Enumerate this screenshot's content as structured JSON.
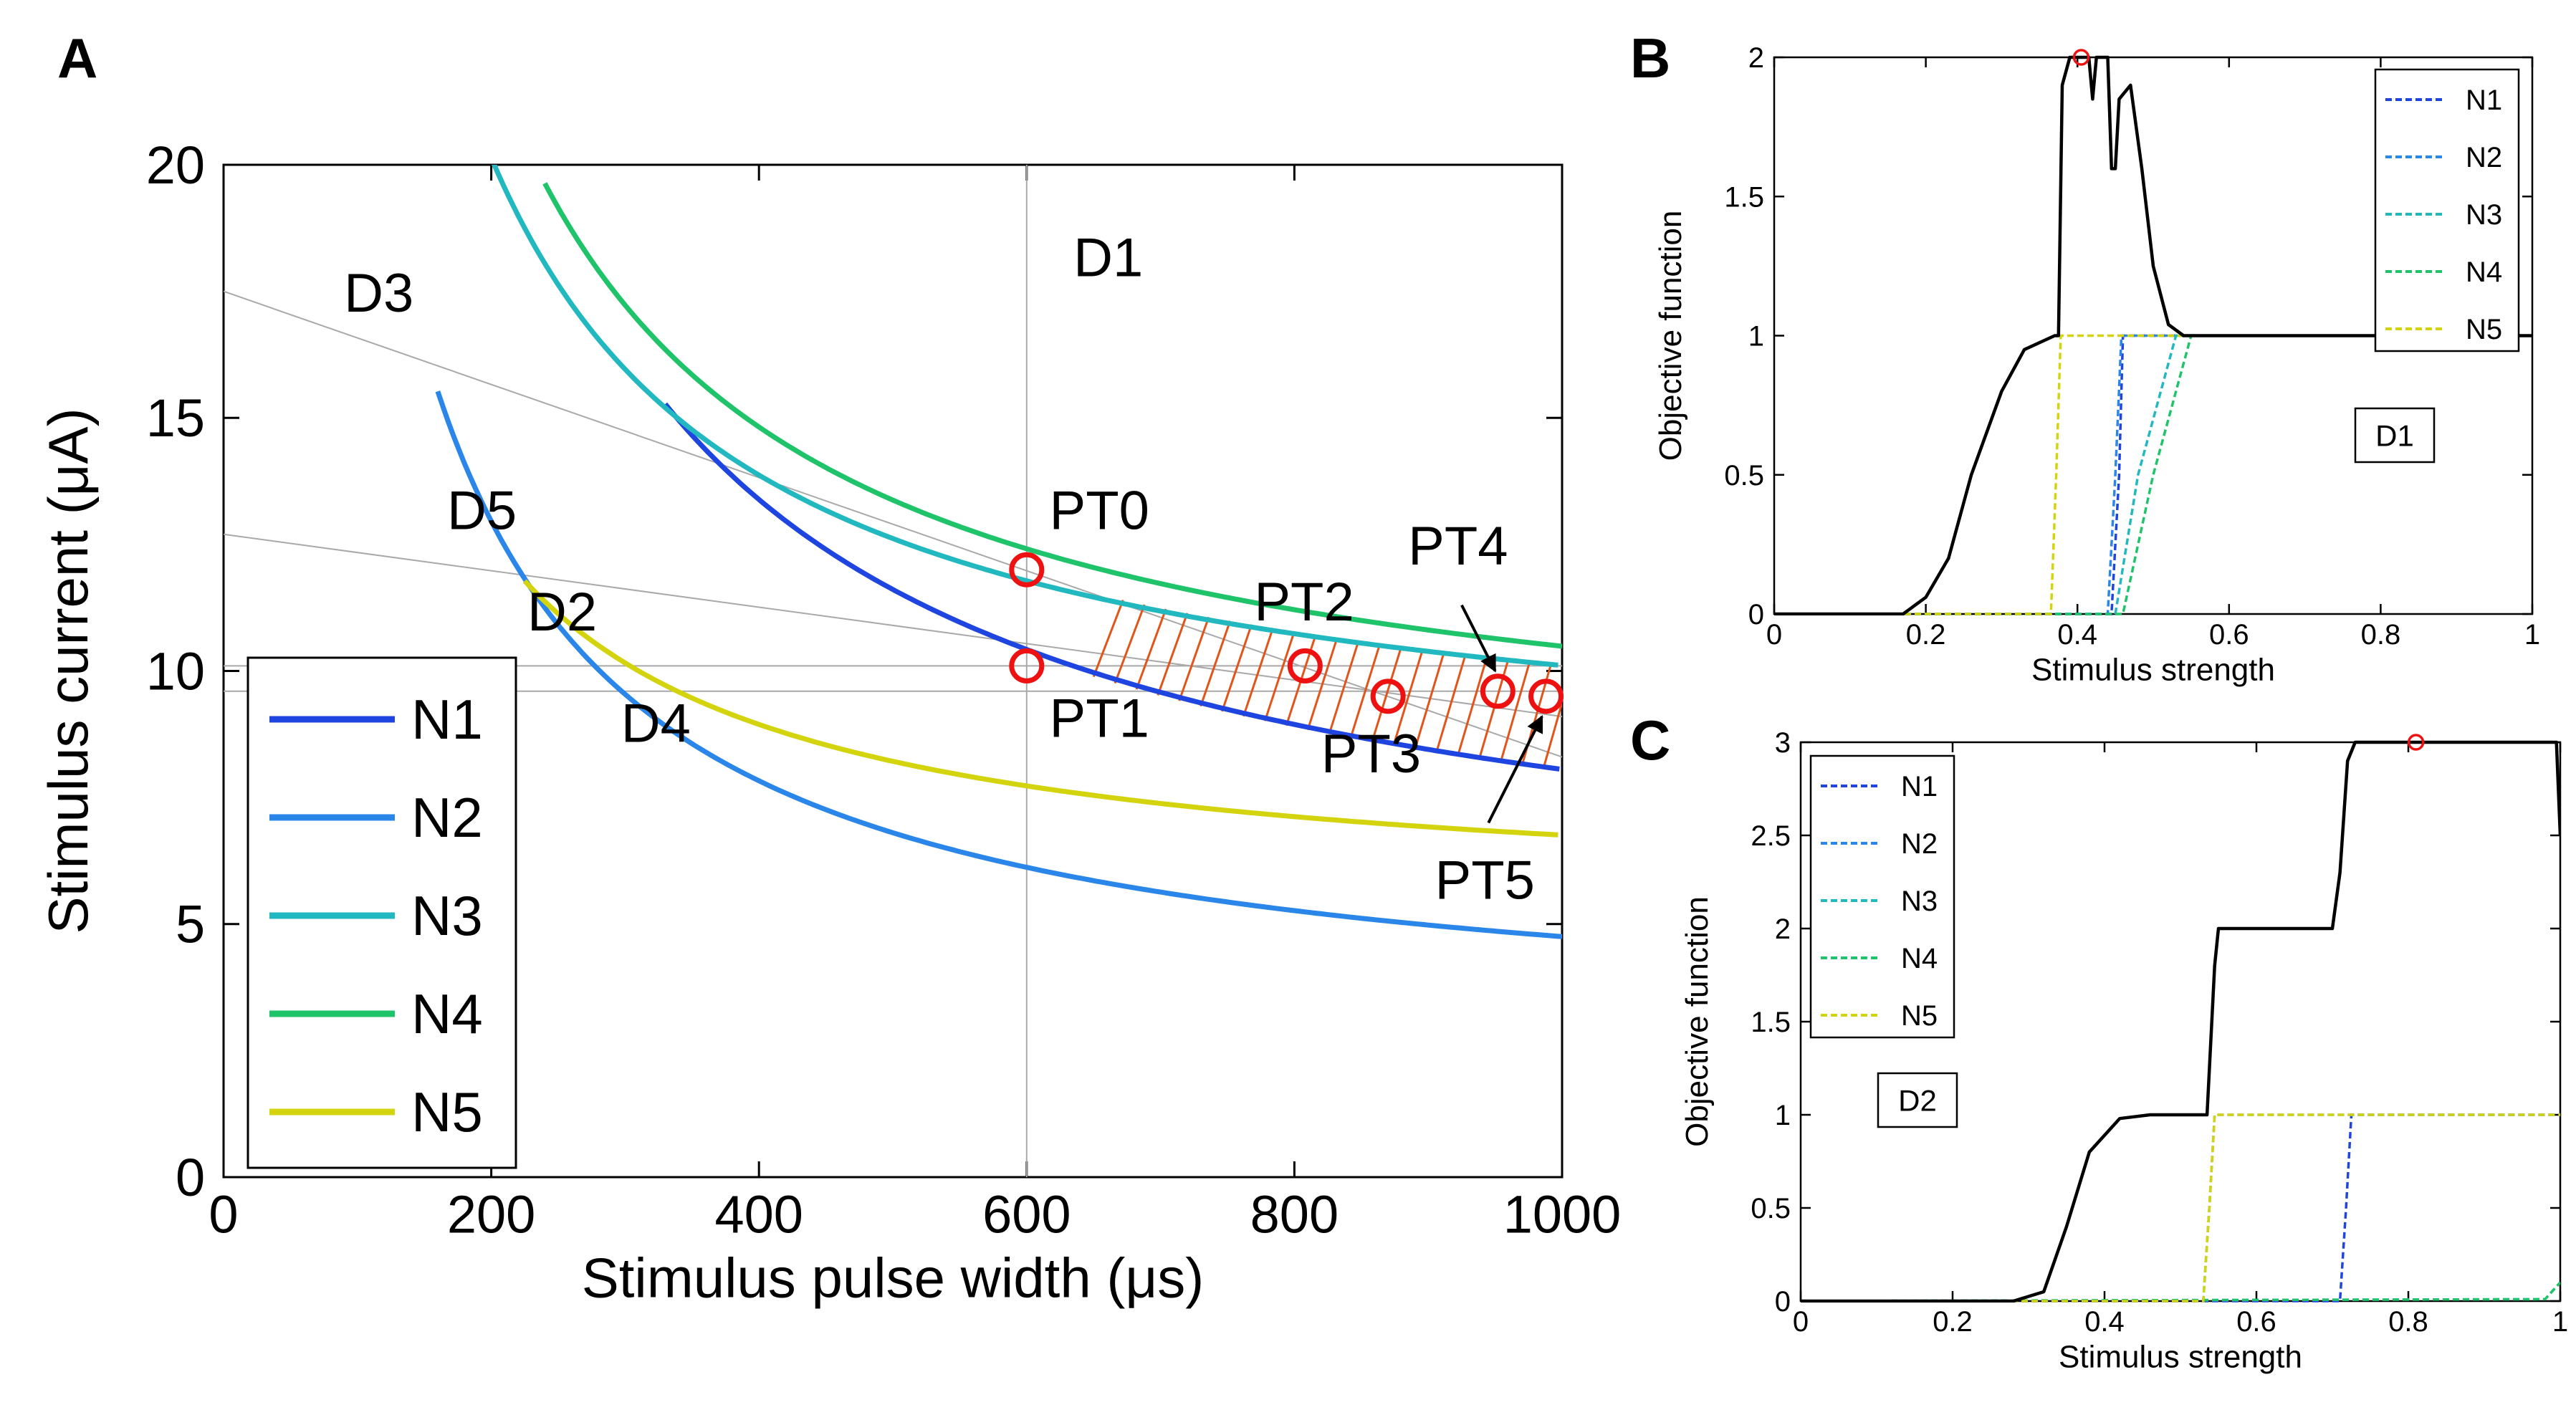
{
  "colors": {
    "N1": "#1f45e0",
    "N2": "#2a86e8",
    "N3": "#22b8c0",
    "N4": "#1fc46a",
    "N5": "#d4d40e",
    "black": "#000000",
    "marker": "#ee1111",
    "hatch": "#e2551a",
    "guide": "#a9a9a9"
  },
  "chart_data": [
    {
      "panel": "A",
      "type": "line",
      "title": "",
      "xlabel": "Stimulus pulse width (μs)",
      "ylabel": "Stimulus current (μA)",
      "xlim": [
        0,
        1000
      ],
      "ylim": [
        0,
        20
      ],
      "xticks": [
        "0",
        "200",
        "400",
        "600",
        "800",
        "1000"
      ],
      "yticks": [
        "0",
        "5",
        "10",
        "15",
        "20"
      ],
      "curve_model": "y = rheobase * (1 + chronaxie / x)",
      "series": [
        {
          "name": "N1",
          "rheobase": 4.5,
          "chronaxie": 790,
          "x_range": [
            330,
            1000
          ],
          "color_key": "N1"
        },
        {
          "name": "N2",
          "rheobase": 2.7,
          "chronaxie": 760,
          "x_range": [
            160,
            1000
          ],
          "color_key": "N2"
        },
        {
          "name": "N3",
          "rheobase": 7.6,
          "chronaxie": 330,
          "x_range": [
            165,
            1000
          ],
          "color_key": "N3"
        },
        {
          "name": "N4",
          "rheobase": 7.6,
          "chronaxie": 380,
          "x_range": [
            240,
            1000
          ],
          "color_key": "N4"
        },
        {
          "name": "N5",
          "rheobase": 5.3,
          "chronaxie": 275,
          "x_range": [
            225,
            1000
          ],
          "color_key": "N5"
        }
      ],
      "guide_lines": [
        {
          "from": [
            0,
            17.5
          ],
          "to": [
            1000,
            8.3
          ]
        },
        {
          "from": [
            0,
            12.7
          ],
          "to": [
            1000,
            9.1
          ]
        },
        {
          "from": [
            0,
            10.1
          ],
          "to": [
            1000,
            10.1
          ]
        },
        {
          "from": [
            0,
            9.6
          ],
          "to": [
            1000,
            9.6
          ]
        },
        {
          "from": [
            600,
            0
          ],
          "to": [
            600,
            20
          ]
        }
      ],
      "feasible_region_hatch": {
        "x_range": [
          660,
          1000
        ],
        "lower": "N1",
        "upper": "N3"
      },
      "region_labels": [
        {
          "text": "D1",
          "x": 635,
          "y": 17.8
        },
        {
          "text": "D3",
          "x": 90,
          "y": 17.1
        },
        {
          "text": "D5",
          "x": 167,
          "y": 12.8
        },
        {
          "text": "D2",
          "x": 227,
          "y": 10.8
        },
        {
          "text": "D4",
          "x": 297,
          "y": 8.6
        }
      ],
      "points": [
        {
          "label": "PT0",
          "x": 600,
          "y": 12.0,
          "label_x": 617,
          "label_y": 12.8
        },
        {
          "label": "PT1",
          "x": 600,
          "y": 10.1,
          "label_x": 617,
          "label_y": 8.7
        },
        {
          "label": "PT2",
          "x": 808,
          "y": 10.1,
          "label_x": 770,
          "label_y": 11.0
        },
        {
          "label": "PT3",
          "x": 870,
          "y": 9.5,
          "label_x": 820,
          "label_y": 8.0
        },
        {
          "label": "PT4",
          "x": 952,
          "y": 9.6,
          "label_x": 885,
          "label_y": 12.1
        },
        {
          "label": "PT5",
          "x": 988,
          "y": 9.5,
          "label_x": 905,
          "label_y": 5.5
        }
      ],
      "arrows": [
        {
          "from": [
            925,
            11.3
          ],
          "to": [
            950,
            10.0
          ]
        },
        {
          "from": [
            945,
            7.0
          ],
          "to": [
            985,
            9.1
          ]
        }
      ],
      "legend": {
        "location": "bottom-left",
        "entries": [
          "N1",
          "N2",
          "N3",
          "N4",
          "N5"
        ]
      }
    },
    {
      "panel": "B",
      "type": "line",
      "xlabel": "Stimulus strength",
      "ylabel": "Objective function",
      "xlim": [
        0,
        1
      ],
      "ylim": [
        0,
        2
      ],
      "xticks": [
        "0",
        "0.2",
        "0.4",
        "0.6",
        "0.8",
        "1"
      ],
      "yticks": [
        "0",
        "0.5",
        "1",
        "1.5",
        "2"
      ],
      "box_label": "D1",
      "objective_points": [
        [
          0,
          0
        ],
        [
          0.17,
          0
        ],
        [
          0.2,
          0.06
        ],
        [
          0.23,
          0.2
        ],
        [
          0.26,
          0.5
        ],
        [
          0.3,
          0.8
        ],
        [
          0.33,
          0.95
        ],
        [
          0.37,
          1.0
        ],
        [
          0.375,
          1.0
        ],
        [
          0.38,
          1.9
        ],
        [
          0.39,
          2.0
        ],
        [
          0.415,
          2.0
        ],
        [
          0.42,
          1.85
        ],
        [
          0.425,
          2.0
        ],
        [
          0.44,
          2.0
        ],
        [
          0.445,
          1.6
        ],
        [
          0.45,
          1.6
        ],
        [
          0.455,
          1.85
        ],
        [
          0.47,
          1.9
        ],
        [
          0.485,
          1.6
        ],
        [
          0.5,
          1.25
        ],
        [
          0.52,
          1.04
        ],
        [
          0.54,
          1.0
        ],
        [
          1,
          1.0
        ]
      ],
      "optimum": {
        "x": 0.405,
        "y": 2.0
      },
      "series": [
        {
          "name": "N1",
          "points": [
            [
              0,
              0
            ],
            [
              0.445,
              0
            ],
            [
              0.455,
              0.5
            ],
            [
              0.46,
              1.0
            ],
            [
              1,
              1.0
            ]
          ]
        },
        {
          "name": "N2",
          "points": [
            [
              0,
              0
            ],
            [
              0.44,
              0
            ],
            [
              0.45,
              0.5
            ],
            [
              0.458,
              1.0
            ],
            [
              1,
              1.0
            ]
          ]
        },
        {
          "name": "N3",
          "points": [
            [
              0,
              0
            ],
            [
              0.45,
              0
            ],
            [
              0.48,
              0.5
            ],
            [
              0.53,
              1.0
            ],
            [
              1,
              1.0
            ]
          ]
        },
        {
          "name": "N4",
          "points": [
            [
              0,
              0
            ],
            [
              0.46,
              0
            ],
            [
              0.5,
              0.5
            ],
            [
              0.55,
              1.0
            ],
            [
              1,
              1.0
            ]
          ]
        },
        {
          "name": "N5",
          "points": [
            [
              0,
              0
            ],
            [
              0.365,
              0
            ],
            [
              0.372,
              0.5
            ],
            [
              0.378,
              1.0
            ],
            [
              1,
              1.0
            ]
          ]
        }
      ],
      "legend": {
        "location": "top-right",
        "entries": [
          "N1",
          "N2",
          "N3",
          "N4",
          "N5"
        ]
      }
    },
    {
      "panel": "C",
      "type": "line",
      "xlabel": "Stimulus strength",
      "ylabel": "Objective function",
      "xlim": [
        0,
        1
      ],
      "ylim": [
        0,
        3
      ],
      "xticks": [
        "0",
        "0.2",
        "0.4",
        "0.6",
        "0.8",
        "1"
      ],
      "yticks": [
        "0",
        "0.5",
        "1",
        "1.5",
        "2",
        "2.5",
        "3"
      ],
      "box_label": "D2",
      "objective_points": [
        [
          0,
          0
        ],
        [
          0.28,
          0
        ],
        [
          0.32,
          0.05
        ],
        [
          0.35,
          0.4
        ],
        [
          0.38,
          0.8
        ],
        [
          0.42,
          0.98
        ],
        [
          0.46,
          1.0
        ],
        [
          0.535,
          1.0
        ],
        [
          0.545,
          1.8
        ],
        [
          0.55,
          2.0
        ],
        [
          0.7,
          2.0
        ],
        [
          0.71,
          2.3
        ],
        [
          0.72,
          2.9
        ],
        [
          0.73,
          3.0
        ],
        [
          0.995,
          3.0
        ],
        [
          1.0,
          2.5
        ]
      ],
      "optimum": {
        "x": 0.81,
        "y": 3.0
      },
      "series": [
        {
          "name": "N1",
          "points": [
            [
              0,
              0
            ],
            [
              0.71,
              0
            ],
            [
              0.718,
              0.5
            ],
            [
              0.725,
              1.0
            ],
            [
              1,
              1.0
            ]
          ]
        },
        {
          "name": "N2",
          "points": [
            [
              0,
              0
            ],
            [
              0.53,
              0
            ],
            [
              0.538,
              0.5
            ],
            [
              0.545,
              1.0
            ],
            [
              1,
              1.0
            ]
          ]
        },
        {
          "name": "N3",
          "points": [
            [
              0,
              0
            ],
            [
              0.98,
              0.01
            ],
            [
              1.0,
              0.1
            ]
          ]
        },
        {
          "name": "N4",
          "points": [
            [
              0,
              0
            ],
            [
              0.98,
              0.01
            ],
            [
              1.0,
              0.1
            ]
          ]
        },
        {
          "name": "N5",
          "points": [
            [
              0,
              0
            ],
            [
              0.53,
              0
            ],
            [
              0.538,
              0.5
            ],
            [
              0.545,
              1.0
            ],
            [
              1,
              1.0
            ]
          ]
        }
      ],
      "legend": {
        "location": "top-left",
        "entries": [
          "N1",
          "N2",
          "N3",
          "N4",
          "N5"
        ]
      }
    }
  ],
  "panels": {
    "A": "A",
    "B": "B",
    "C": "C"
  }
}
